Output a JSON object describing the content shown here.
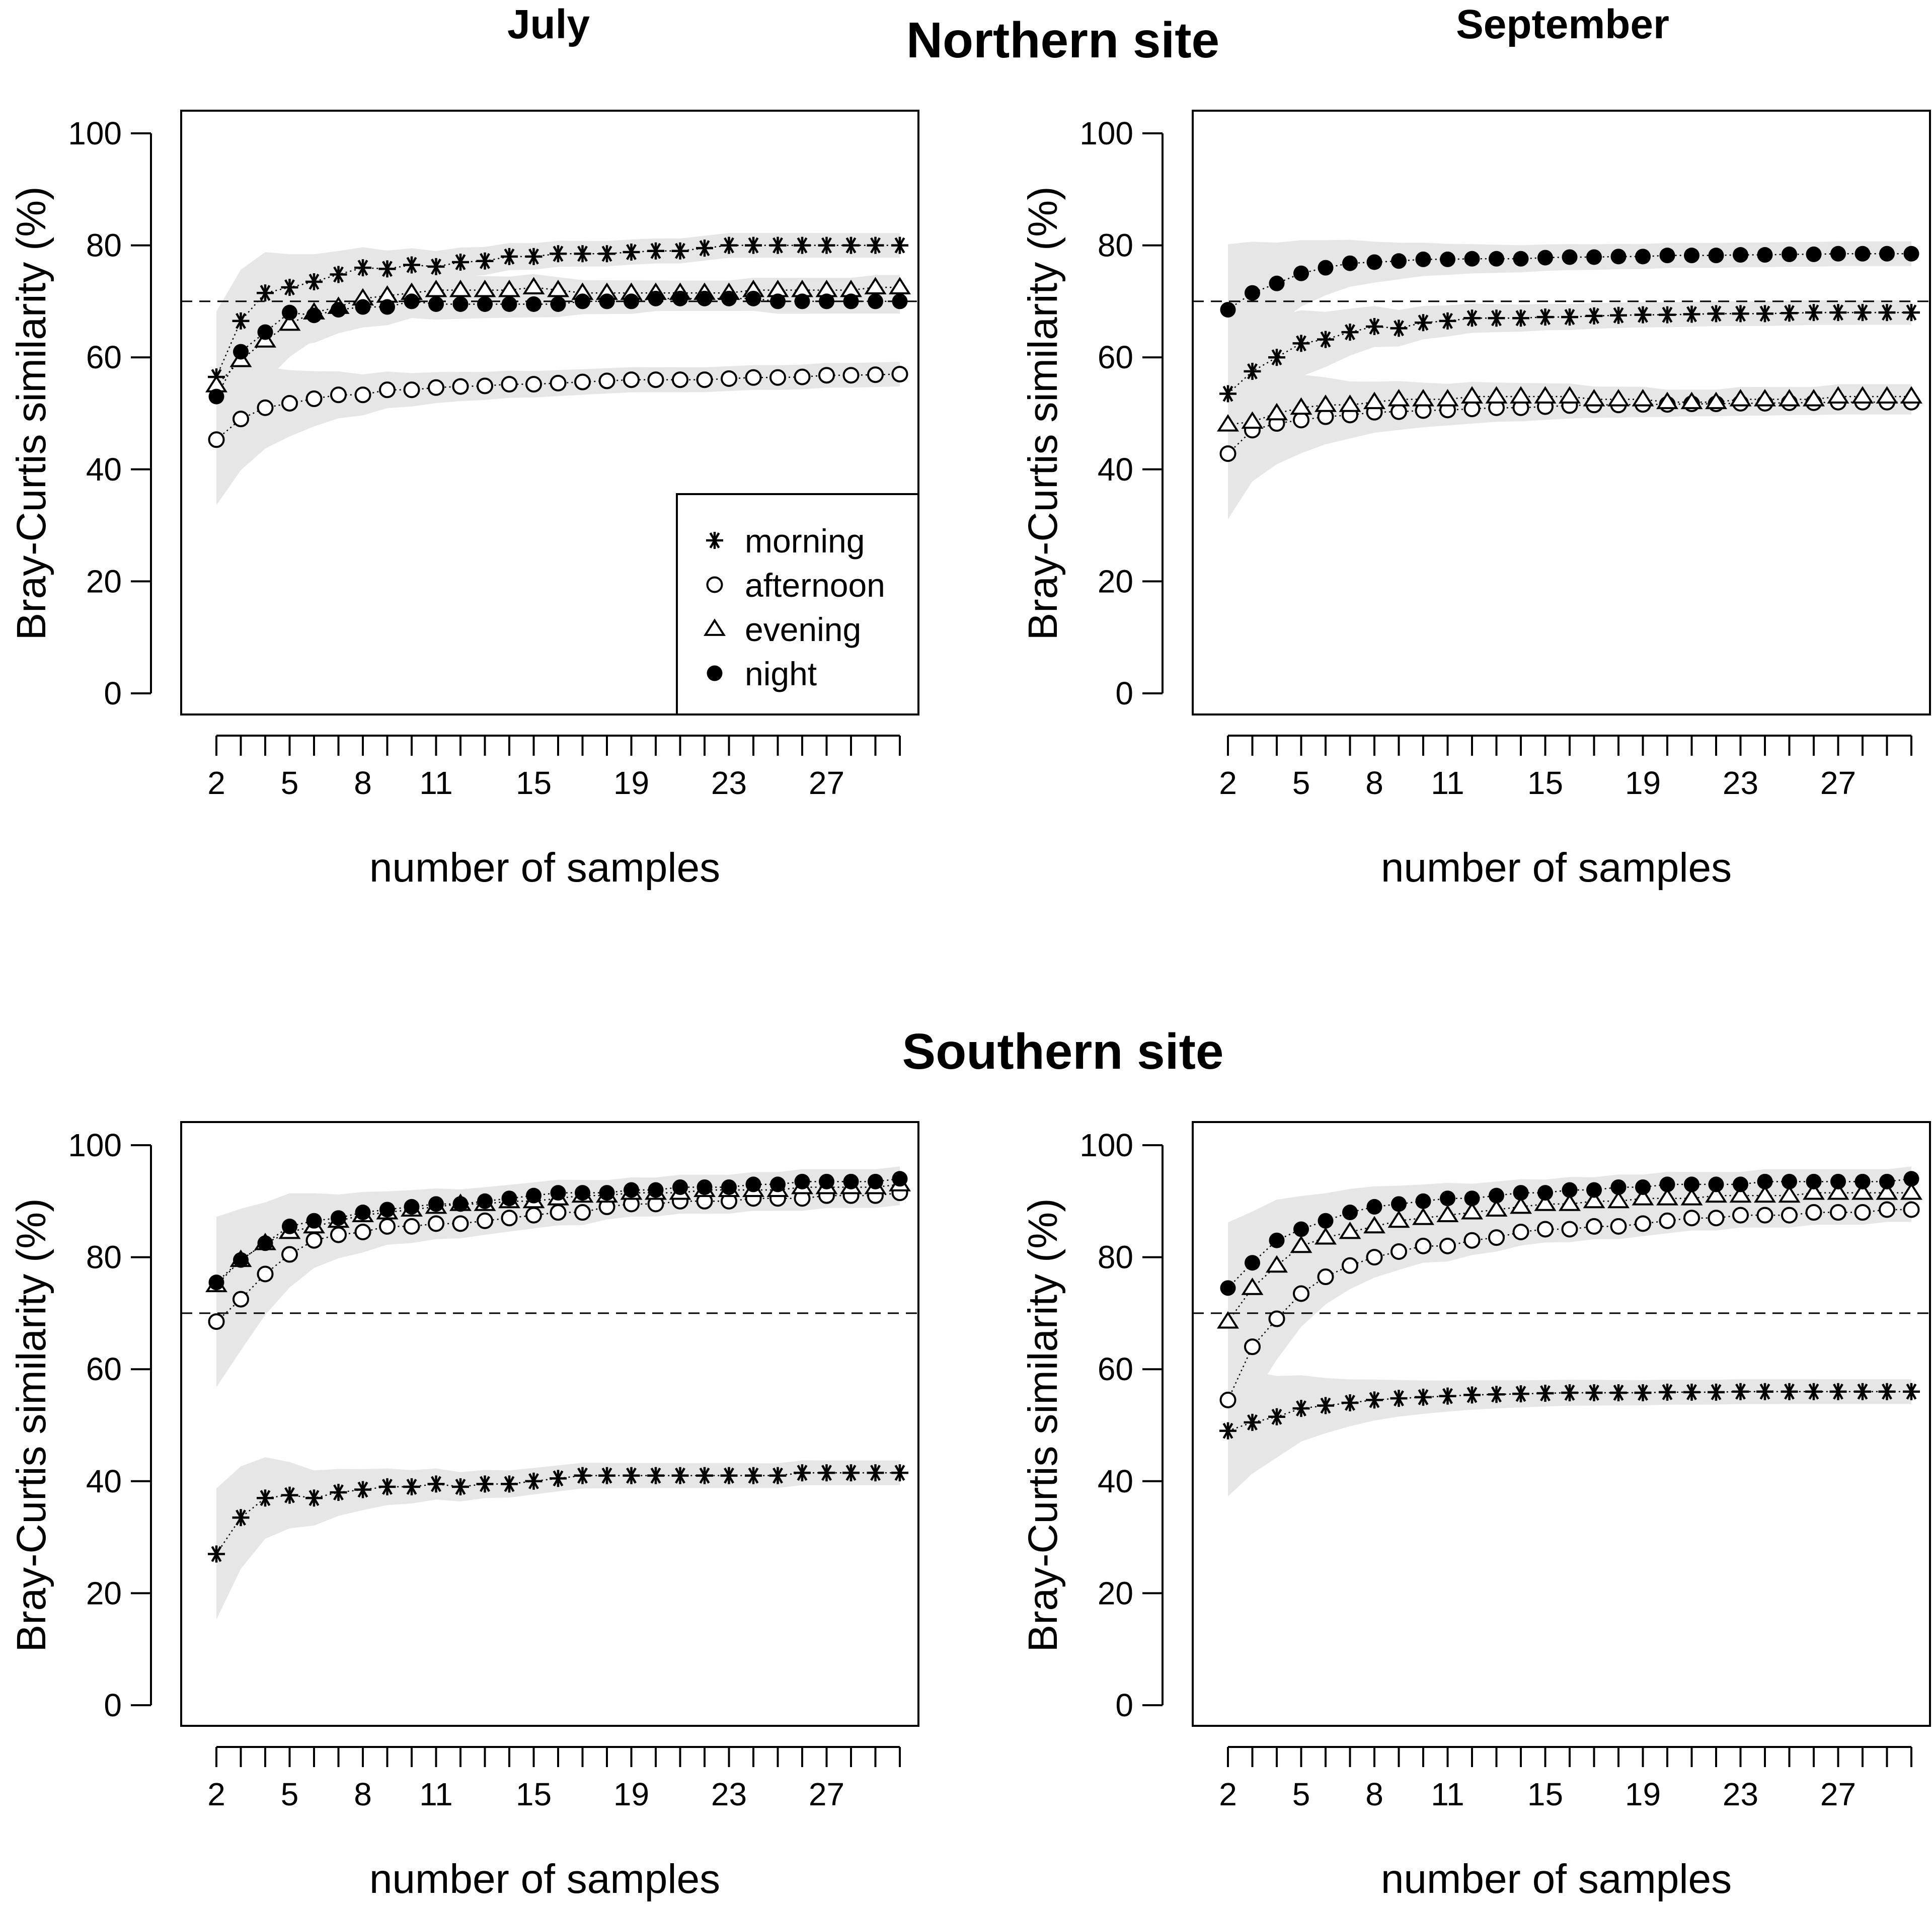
{
  "figure": {
    "site_titles": {
      "north": "Northern site",
      "south": "Southern site"
    },
    "month_titles": {
      "left": "July",
      "right": "September"
    }
  },
  "legend": [
    {
      "label": "morning",
      "symbol": "asterisk"
    },
    {
      "label": "afternoon",
      "symbol": "open-circle"
    },
    {
      "label": "evening",
      "symbol": "open-triangle"
    },
    {
      "label": "night",
      "symbol": "filled-circle"
    }
  ],
  "chart_data": [
    {
      "type": "scatter",
      "title": "Northern site — July",
      "site": "Northern site",
      "month": "July",
      "xlabel": "number of samples",
      "ylabel": "Bray-Curtis similarity (%)",
      "xlim": [
        1,
        30
      ],
      "ylim": [
        0,
        100
      ],
      "x_ticks": [
        2,
        5,
        8,
        11,
        15,
        19,
        23,
        27
      ],
      "y_ticks": [
        0,
        20,
        40,
        60,
        80,
        100
      ],
      "reference_line": 70,
      "show_legend": true,
      "x": [
        2,
        3,
        4,
        5,
        6,
        7,
        8,
        9,
        10,
        11,
        12,
        13,
        14,
        15,
        16,
        17,
        18,
        19,
        20,
        21,
        22,
        23,
        24,
        25,
        26,
        27,
        28,
        29,
        30
      ],
      "series": [
        {
          "name": "morning",
          "symbol": "asterisk",
          "values": [
            56.5,
            66.5,
            71.5,
            72.5,
            73.5,
            74.8,
            76,
            75.8,
            76.5,
            76.2,
            77,
            77.2,
            78,
            78,
            78.5,
            78.5,
            78.5,
            78.8,
            79,
            79,
            79.5,
            80,
            80,
            80,
            80,
            80,
            80,
            80,
            80
          ]
        },
        {
          "name": "afternoon",
          "symbol": "open-circle",
          "values": [
            45.3,
            49,
            51,
            51.8,
            52.6,
            53.3,
            53.3,
            54.2,
            54.2,
            54.6,
            54.8,
            54.9,
            55.2,
            55.2,
            55.4,
            55.6,
            55.8,
            56,
            56,
            56,
            56,
            56.2,
            56.4,
            56.4,
            56.5,
            56.8,
            56.8,
            56.9,
            57
          ]
        },
        {
          "name": "evening",
          "symbol": "open-triangle",
          "values": [
            55,
            59.5,
            63,
            66,
            68,
            69,
            70.5,
            71,
            71.5,
            72,
            72,
            72,
            72,
            72.5,
            72,
            71.5,
            71.5,
            71.5,
            71.5,
            71.5,
            71.5,
            71.5,
            72,
            72,
            72,
            72,
            72,
            72.5,
            72.5
          ]
        },
        {
          "name": "night",
          "symbol": "filled-circle",
          "values": [
            53,
            61,
            64.5,
            68,
            67.5,
            68.5,
            69,
            69,
            70,
            69.5,
            69.5,
            69.5,
            69.5,
            69.5,
            69.5,
            70,
            70,
            70,
            70.5,
            70.5,
            70.5,
            70.5,
            70.5,
            70,
            70,
            70,
            70,
            70,
            70
          ]
        }
      ]
    },
    {
      "type": "scatter",
      "title": "Northern site — September",
      "site": "Northern site",
      "month": "September",
      "xlabel": "number of samples",
      "ylabel": "Bray-Curtis similarity (%)",
      "xlim": [
        1,
        30
      ],
      "ylim": [
        0,
        100
      ],
      "x_ticks": [
        2,
        5,
        8,
        11,
        15,
        19,
        23,
        27
      ],
      "y_ticks": [
        0,
        20,
        40,
        60,
        80,
        100
      ],
      "reference_line": 70,
      "show_legend": false,
      "x": [
        2,
        3,
        4,
        5,
        6,
        7,
        8,
        9,
        10,
        11,
        12,
        13,
        14,
        15,
        16,
        17,
        18,
        19,
        20,
        21,
        22,
        23,
        24,
        25,
        26,
        27,
        28,
        29,
        30
      ],
      "series": [
        {
          "name": "morning",
          "symbol": "asterisk",
          "values": [
            53.5,
            57.5,
            60,
            62.5,
            63.2,
            64.5,
            65.5,
            65.2,
            66.2,
            66.5,
            67,
            67,
            67,
            67.2,
            67.2,
            67.4,
            67.5,
            67.6,
            67.6,
            67.7,
            67.8,
            67.8,
            67.8,
            67.9,
            68,
            68,
            68,
            68,
            68
          ]
        },
        {
          "name": "afternoon",
          "symbol": "open-circle",
          "values": [
            42.8,
            47,
            48.2,
            48.8,
            49.4,
            49.7,
            50.2,
            50.3,
            50.5,
            50.6,
            50.8,
            51,
            51,
            51.2,
            51.4,
            51.5,
            51.5,
            51.6,
            51.6,
            51.7,
            51.7,
            51.8,
            51.8,
            51.9,
            51.9,
            52,
            52,
            52,
            52
          ]
        },
        {
          "name": "evening",
          "symbol": "open-triangle",
          "values": [
            48,
            48.5,
            50,
            51,
            51.5,
            51.5,
            52,
            52.5,
            52.5,
            52.5,
            53,
            53,
            53,
            53,
            53,
            52.5,
            52.5,
            52.5,
            52,
            52,
            52,
            52.5,
            52.5,
            52.5,
            52.5,
            53,
            53,
            53,
            53
          ]
        },
        {
          "name": "night",
          "symbol": "filled-circle",
          "values": [
            68.5,
            71.5,
            73.2,
            75,
            76,
            76.8,
            77,
            77.2,
            77.5,
            77.5,
            77.6,
            77.6,
            77.6,
            77.8,
            77.9,
            77.9,
            78,
            78,
            78.2,
            78.2,
            78.2,
            78.3,
            78.3,
            78.4,
            78.4,
            78.5,
            78.5,
            78.5,
            78.5
          ]
        }
      ]
    },
    {
      "type": "scatter",
      "title": "Southern site — July",
      "site": "Southern site",
      "month": "July",
      "xlabel": "number of samples",
      "ylabel": "Bray-Curtis similarity (%)",
      "xlim": [
        1,
        30
      ],
      "ylim": [
        0,
        100
      ],
      "x_ticks": [
        2,
        5,
        8,
        11,
        15,
        19,
        23,
        27
      ],
      "y_ticks": [
        0,
        20,
        40,
        60,
        80,
        100
      ],
      "reference_line": 70,
      "show_legend": false,
      "x": [
        2,
        3,
        4,
        5,
        6,
        7,
        8,
        9,
        10,
        11,
        12,
        13,
        14,
        15,
        16,
        17,
        18,
        19,
        20,
        21,
        22,
        23,
        24,
        25,
        26,
        27,
        28,
        29,
        30
      ],
      "series": [
        {
          "name": "morning",
          "symbol": "asterisk",
          "values": [
            27,
            33.5,
            37,
            37.5,
            37,
            38,
            38.5,
            39,
            39,
            39.5,
            39,
            39.5,
            39.5,
            40,
            40.5,
            41,
            41,
            41,
            41,
            41,
            41,
            41,
            41,
            41,
            41.5,
            41.5,
            41.5,
            41.5,
            41.5
          ]
        },
        {
          "name": "afternoon",
          "symbol": "open-circle",
          "values": [
            68.5,
            72.5,
            77,
            80.5,
            83,
            84,
            84.5,
            85.5,
            85.5,
            86,
            86,
            86.5,
            87,
            87.5,
            88,
            88,
            89,
            89.5,
            89.5,
            90,
            90,
            90,
            90.5,
            90.5,
            90.5,
            91,
            91,
            91,
            91.5
          ]
        },
        {
          "name": "evening",
          "symbol": "open-triangle",
          "values": [
            75,
            79.5,
            82.5,
            84.5,
            85.5,
            86.5,
            87.5,
            88,
            88.5,
            89,
            89.5,
            89.5,
            90,
            90,
            90.5,
            91,
            91,
            91.5,
            91.5,
            91.5,
            92,
            92,
            92,
            92,
            92.5,
            92.5,
            92.5,
            92.5,
            93
          ]
        },
        {
          "name": "night",
          "symbol": "filled-circle",
          "values": [
            75.5,
            79.5,
            82.5,
            85.5,
            86.5,
            87,
            88,
            88.5,
            89,
            89.5,
            89.5,
            90,
            90.5,
            91,
            91.5,
            91.5,
            91.5,
            92,
            92,
            92.5,
            92.5,
            92.5,
            93,
            93,
            93.5,
            93.5,
            93.5,
            93.5,
            94
          ]
        }
      ]
    },
    {
      "type": "scatter",
      "title": "Southern site — September",
      "site": "Southern site",
      "month": "September",
      "xlabel": "number of samples",
      "ylabel": "Bray-Curtis similarity (%)",
      "xlim": [
        1,
        30
      ],
      "ylim": [
        0,
        100
      ],
      "x_ticks": [
        2,
        5,
        8,
        11,
        15,
        19,
        23,
        27
      ],
      "y_ticks": [
        0,
        20,
        40,
        60,
        80,
        100
      ],
      "reference_line": 70,
      "show_legend": false,
      "x": [
        2,
        3,
        4,
        5,
        6,
        7,
        8,
        9,
        10,
        11,
        12,
        13,
        14,
        15,
        16,
        17,
        18,
        19,
        20,
        21,
        22,
        23,
        24,
        25,
        26,
        27,
        28,
        29,
        30
      ],
      "series": [
        {
          "name": "morning",
          "symbol": "asterisk",
          "values": [
            49,
            50.5,
            51.5,
            53,
            53.5,
            54,
            54.5,
            54.8,
            55,
            55.2,
            55.4,
            55.5,
            55.6,
            55.7,
            55.8,
            55.8,
            55.8,
            55.8,
            55.9,
            55.9,
            55.9,
            56,
            56,
            56,
            56,
            56,
            56,
            56,
            56
          ]
        },
        {
          "name": "afternoon",
          "symbol": "open-circle",
          "values": [
            54.5,
            64,
            69,
            73.5,
            76.5,
            78.5,
            80,
            81,
            82,
            82,
            83,
            83.5,
            84.5,
            85,
            85,
            85.5,
            85.5,
            86,
            86.5,
            87,
            87,
            87.5,
            87.5,
            87.5,
            88,
            88,
            88,
            88.5,
            88.5
          ]
        },
        {
          "name": "evening",
          "symbol": "open-triangle",
          "values": [
            68.5,
            74.5,
            78.5,
            82,
            83.5,
            84.5,
            85.5,
            86.5,
            87,
            87.5,
            88,
            88.5,
            89,
            89.5,
            89.5,
            90,
            90,
            90.5,
            90.5,
            90.5,
            91,
            91,
            91,
            91,
            91.5,
            91.5,
            91.5,
            91.5,
            91.5
          ]
        },
        {
          "name": "night",
          "symbol": "filled-circle",
          "values": [
            74.5,
            79,
            83,
            85,
            86.5,
            88,
            89,
            89.5,
            90,
            90.5,
            90.5,
            91,
            91.5,
            91.5,
            92,
            92,
            92.5,
            92.5,
            93,
            93,
            93,
            93,
            93.5,
            93.5,
            93.5,
            93.5,
            93.5,
            93.5,
            94
          ]
        }
      ]
    }
  ]
}
